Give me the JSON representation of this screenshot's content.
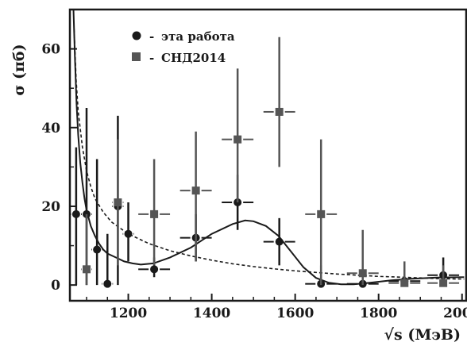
{
  "chart_data": {
    "type": "scatter",
    "title": "",
    "xlabel": "√s (МэВ)",
    "ylabel": "σ (пб)",
    "xlim": [
      1060,
      2010
    ],
    "ylim": [
      -4,
      70
    ],
    "xticks": [
      1200,
      1400,
      1600,
      1800,
      2000
    ],
    "yticks": [
      0,
      20,
      40,
      60
    ],
    "legend_position": "top-center",
    "series": [
      {
        "name": "эта работа",
        "marker": "circle",
        "color": "#1a1a1a",
        "points": [
          {
            "x": 1075,
            "y": 18,
            "ylo": 0,
            "yhi": 35,
            "xerr": 12
          },
          {
            "x": 1100,
            "y": 18,
            "ylo": 0,
            "yhi": 45,
            "xerr": 12
          },
          {
            "x": 1125,
            "y": 9,
            "ylo": 0,
            "yhi": 32,
            "xerr": 12
          },
          {
            "x": 1150,
            "y": 0.3,
            "ylo": 0,
            "yhi": 13,
            "xerr": 12
          },
          {
            "x": 1175,
            "y": 20,
            "ylo": 0,
            "yhi": 43,
            "xerr": 12
          },
          {
            "x": 1200,
            "y": 13,
            "ylo": 6,
            "yhi": 21,
            "xerr": 12
          },
          {
            "x": 1262,
            "y": 4,
            "ylo": 2,
            "yhi": 7,
            "xerr": 38
          },
          {
            "x": 1362,
            "y": 12,
            "ylo": 6,
            "yhi": 18,
            "xerr": 38
          },
          {
            "x": 1462,
            "y": 21,
            "ylo": 14,
            "yhi": 28,
            "xerr": 38
          },
          {
            "x": 1562,
            "y": 11,
            "ylo": 5,
            "yhi": 17,
            "xerr": 38
          },
          {
            "x": 1662,
            "y": 0.3,
            "ylo": 0,
            "yhi": 5,
            "xerr": 38
          },
          {
            "x": 1762,
            "y": 0.3,
            "ylo": 0,
            "yhi": 4,
            "xerr": 38
          },
          {
            "x": 1862,
            "y": 1,
            "ylo": 0,
            "yhi": 4,
            "xerr": 38
          },
          {
            "x": 1955,
            "y": 2.5,
            "ylo": 0,
            "yhi": 7,
            "xerr": 38
          }
        ]
      },
      {
        "name": "СНД2014",
        "marker": "square",
        "color": "#555555",
        "points": [
          {
            "x": 1100,
            "y": 4,
            "ylo": 0,
            "yhi": 18,
            "xerr": 12
          },
          {
            "x": 1175,
            "y": 21,
            "ylo": 5,
            "yhi": 37,
            "xerr": 12
          },
          {
            "x": 1262,
            "y": 18,
            "ylo": 5,
            "yhi": 32,
            "xerr": 38
          },
          {
            "x": 1362,
            "y": 24,
            "ylo": 6,
            "yhi": 39,
            "xerr": 38
          },
          {
            "x": 1462,
            "y": 37,
            "ylo": 21,
            "yhi": 55,
            "xerr": 38
          },
          {
            "x": 1562,
            "y": 44,
            "ylo": 30,
            "yhi": 63,
            "xerr": 38
          },
          {
            "x": 1662,
            "y": 18,
            "ylo": 0,
            "yhi": 37,
            "xerr": 38
          },
          {
            "x": 1762,
            "y": 3,
            "ylo": 0,
            "yhi": 14,
            "xerr": 38
          },
          {
            "x": 1862,
            "y": 0.5,
            "ylo": 0,
            "yhi": 6,
            "xerr": 38
          },
          {
            "x": 1955,
            "y": 0.5,
            "ylo": 0,
            "yhi": 5,
            "xerr": 38
          }
        ]
      }
    ],
    "curves": [
      {
        "style": "solid",
        "points": [
          [
            1068,
            72
          ],
          [
            1072,
            58
          ],
          [
            1076,
            46
          ],
          [
            1080,
            38
          ],
          [
            1085,
            31
          ],
          [
            1090,
            26
          ],
          [
            1095,
            22
          ],
          [
            1100,
            19
          ],
          [
            1110,
            15
          ],
          [
            1120,
            12.5
          ],
          [
            1130,
            10.5
          ],
          [
            1140,
            9
          ],
          [
            1150,
            8
          ],
          [
            1170,
            7
          ],
          [
            1190,
            6
          ],
          [
            1210,
            5.5
          ],
          [
            1230,
            5.2
          ],
          [
            1260,
            5.5
          ],
          [
            1300,
            7
          ],
          [
            1350,
            9.5
          ],
          [
            1400,
            13
          ],
          [
            1450,
            15.5
          ],
          [
            1480,
            16.4
          ],
          [
            1500,
            16.2
          ],
          [
            1530,
            15
          ],
          [
            1560,
            12.5
          ],
          [
            1590,
            8.5
          ],
          [
            1620,
            4.5
          ],
          [
            1650,
            1.8
          ],
          [
            1680,
            0.6
          ],
          [
            1710,
            0.2
          ],
          [
            1740,
            0.2
          ],
          [
            1780,
            0.6
          ],
          [
            1830,
            1.2
          ],
          [
            1880,
            1.6
          ],
          [
            1940,
            1.9
          ],
          [
            2005,
            2
          ]
        ]
      },
      {
        "style": "dashed",
        "points": [
          [
            1070,
            65
          ],
          [
            1075,
            52
          ],
          [
            1080,
            44
          ],
          [
            1090,
            35
          ],
          [
            1100,
            29
          ],
          [
            1110,
            25
          ],
          [
            1120,
            22
          ],
          [
            1140,
            18.5
          ],
          [
            1160,
            16
          ],
          [
            1180,
            14.5
          ],
          [
            1200,
            13
          ],
          [
            1250,
            10.5
          ],
          [
            1300,
            8.7
          ],
          [
            1350,
            7.4
          ],
          [
            1400,
            6.3
          ],
          [
            1450,
            5.4
          ],
          [
            1500,
            4.7
          ],
          [
            1550,
            4.1
          ],
          [
            1600,
            3.6
          ],
          [
            1650,
            3.2
          ],
          [
            1700,
            2.8
          ],
          [
            1750,
            2.5
          ],
          [
            1800,
            2.2
          ],
          [
            1850,
            2
          ],
          [
            1900,
            1.8
          ],
          [
            1950,
            1.6
          ],
          [
            2005,
            1.5
          ]
        ]
      }
    ]
  }
}
